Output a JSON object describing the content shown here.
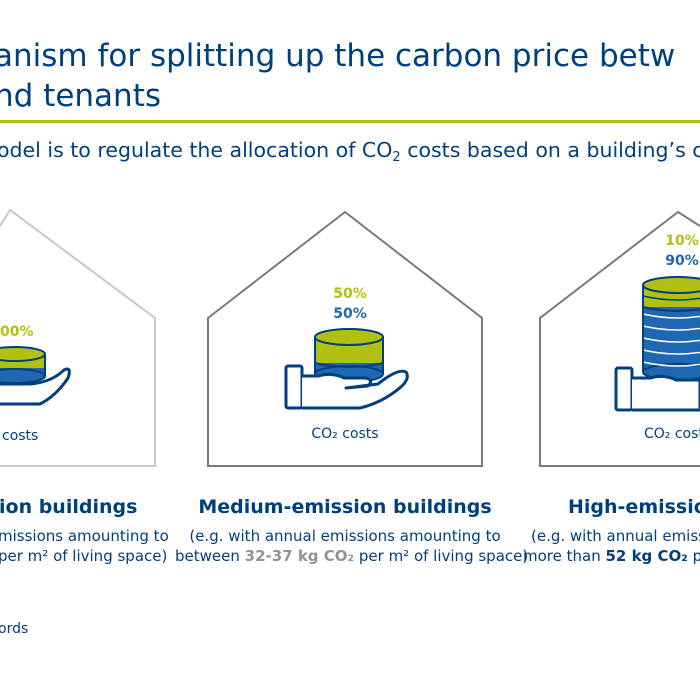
{
  "title": {
    "line1": "anism for splitting up the carbon price betw",
    "line2": "nd tenants"
  },
  "subtitle": {
    "before": "odel is to regulate the allocation of CO",
    "sub": "2",
    "after": " costs based on a building’s ca"
  },
  "colors": {
    "accent_green": "#b2bf13",
    "dark_blue": "#003f7d",
    "mid_blue": "#1f67b1",
    "house_outline": "#c8c8c8",
    "house_outline_dark": "#7a7a7a"
  },
  "panels": [
    {
      "percents": [
        "00%"
      ],
      "costs_label": "costs",
      "category": "ion buildings",
      "desc_line1": "missions amounting to",
      "desc_line2": "per m² of living  space)"
    },
    {
      "percents": [
        "50%",
        "50%"
      ],
      "costs_label": "CO₂ costs",
      "category": "Medium-emission buildings",
      "desc_line1": "(e.g. with annual emissions amounting to",
      "desc_line2_pre": "between ",
      "desc_line2_hl": "32-37 kg CO₂",
      "desc_line2_post": " per m² of living  space)"
    },
    {
      "percents": [
        "10%",
        "90%"
      ],
      "costs_label": "CO₂ cost",
      "category": "High-emission",
      "desc_line1": "(e.g. with annual emissi",
      "desc_line2_pre": "more than ",
      "desc_line2_hl": "52 kg CO₂",
      "desc_line2_post": " per"
    }
  ],
  "footnote": "ords"
}
